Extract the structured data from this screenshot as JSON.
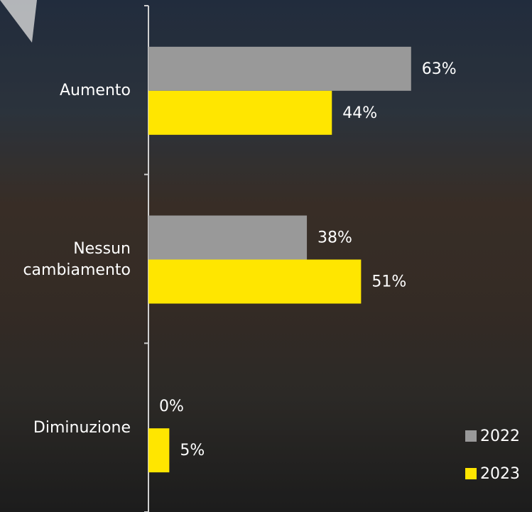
{
  "chart_data": {
    "type": "hbar",
    "categories": [
      "Aumento",
      "Nessun cambiamento",
      "Diminuzione"
    ],
    "series": [
      {
        "name": "2022",
        "color": "#999999",
        "values": [
          63,
          38,
          0
        ],
        "value_labels": [
          "63%",
          "38%",
          "0%"
        ]
      },
      {
        "name": "2023",
        "color": "#ffe600",
        "values": [
          44,
          51,
          5
        ],
        "value_labels": [
          "44%",
          "51%",
          "5%"
        ]
      }
    ],
    "xlim": [
      0,
      100
    ],
    "legend": "bottom-right"
  }
}
